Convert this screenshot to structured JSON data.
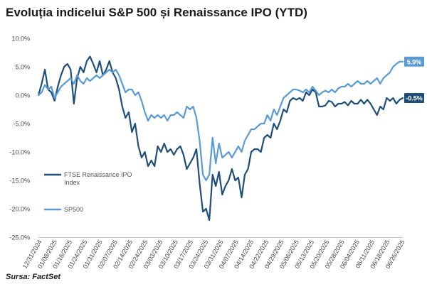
{
  "chart_data": {
    "type": "line",
    "title": "Evoluția indicelui S&P 500 și Renaissance IPO (YTD)",
    "source": "Sursa: FactSet",
    "xlabel": "",
    "ylabel": "",
    "ylim": [
      -25,
      10
    ],
    "yticks": [
      -25,
      -20,
      -15,
      -10,
      -5,
      0,
      5,
      10
    ],
    "ytick_labels": [
      "-25.0%",
      "-20.0%",
      "-15.0%",
      "-10.0%",
      "-5.0%",
      "0.0%",
      "5.0%",
      "10.0%"
    ],
    "grid": false,
    "legend_position": "left",
    "x_tick_labels": [
      "12/31/2024",
      "01/08/2025",
      "01/16/2025",
      "01/24/2025",
      "01/31/2025",
      "02/07/2025",
      "02/14/2025",
      "02/24/2025",
      "03/03/2025",
      "03/10/2025",
      "03/17/2025",
      "03/24/2025",
      "03/31/2025",
      "04/07/2025",
      "04/14/2025",
      "04/22/2025",
      "04/29/2025",
      "05/06/2025",
      "05/13/2025",
      "05/20/2025",
      "05/28/2025",
      "06/04/2025",
      "06/11/2025",
      "06/18/2025",
      "06/26/2025"
    ],
    "series": [
      {
        "name": "FTSE Renaissance IPO Index",
        "color": "#1f4e79",
        "end_label": "-0.5%",
        "values": [
          0.0,
          2.0,
          4.5,
          1.0,
          0.5,
          -1.0,
          1.5,
          3.5,
          5.0,
          5.5,
          4.5,
          -1.5,
          3.0,
          5.0,
          4.0,
          6.0,
          6.8,
          5.5,
          4.0,
          6.0,
          3.5,
          4.5,
          6.0,
          4.0,
          3.0,
          1.0,
          -2.0,
          -4.0,
          -3.0,
          -6.5,
          -5.0,
          -9.0,
          -11.0,
          -10.0,
          -12.5,
          -11.5,
          -12.5,
          -9.0,
          -10.0,
          -8.5,
          -10.0,
          -9.5,
          -10.5,
          -9.5,
          -9.0,
          -10.5,
          -13.0,
          -12.0,
          -11.0,
          -9.5,
          -15.5,
          -20.5,
          -20.0,
          -22.0,
          -14.0,
          -16.0,
          -13.5,
          -17.5,
          -16.0,
          -15.0,
          -13.0,
          -15.0,
          -14.5,
          -18.0,
          -14.0,
          -13.0,
          -10.0,
          -9.5,
          -9.5,
          -10.0,
          -7.5,
          -7.0,
          -7.5,
          -5.0,
          -6.0,
          -4.5,
          -2.5,
          -3.0,
          -1.0,
          -0.5,
          -0.8,
          -0.5,
          -1.0,
          0.5,
          0.0,
          1.0,
          0.5,
          -2.0,
          -2.0,
          -1.8,
          -1.0,
          -1.2,
          -2.0,
          -1.5,
          -1.5,
          -1.2,
          -1.8,
          -1.0,
          -1.5,
          -1.5,
          -0.8,
          -1.5,
          -0.8,
          -1.5,
          -2.5,
          -3.5,
          -2.0,
          -2.5,
          -0.5,
          -1.0,
          -0.5,
          -1.5,
          -0.8,
          -0.5
        ]
      },
      {
        "name": "SP500",
        "color": "#5b9bd5",
        "end_label": "5.9%",
        "values": [
          0.0,
          0.5,
          1.8,
          1.0,
          1.5,
          -0.5,
          0.5,
          1.5,
          2.0,
          2.5,
          3.0,
          2.0,
          3.5,
          2.5,
          2.0,
          3.0,
          2.5,
          3.0,
          3.5,
          3.0,
          3.5,
          4.0,
          4.5,
          4.0,
          4.5,
          3.5,
          2.0,
          0.5,
          1.0,
          1.0,
          0.0,
          0.5,
          -1.0,
          -3.0,
          -4.5,
          -3.5,
          -4.0,
          -3.5,
          -4.0,
          -3.5,
          -4.5,
          -3.5,
          -3.5,
          -3.0,
          -3.5,
          -4.0,
          -2.0,
          -2.5,
          -2.0,
          -4.0,
          -8.0,
          -14.0,
          -15.0,
          -14.0,
          -7.5,
          -12.0,
          -8.5,
          -11.0,
          -10.5,
          -10.0,
          -11.0,
          -10.0,
          -9.0,
          -10.0,
          -8.0,
          -7.0,
          -6.0,
          -6.0,
          -5.5,
          -5.0,
          -5.0,
          -3.5,
          -4.5,
          -2.5,
          -3.5,
          -2.0,
          -0.5,
          0.0,
          0.5,
          1.0,
          1.0,
          0.8,
          0.5,
          1.0,
          0.5,
          1.5,
          0.8,
          0.0,
          0.5,
          0.8,
          0.5,
          1.0,
          0.5,
          1.2,
          1.5,
          1.5,
          2.0,
          1.5,
          2.0,
          2.5,
          2.0,
          2.0,
          2.5,
          2.0,
          2.5,
          3.0,
          2.0,
          3.0,
          3.5,
          4.0,
          5.0,
          5.5,
          5.9,
          5.9
        ]
      }
    ]
  }
}
